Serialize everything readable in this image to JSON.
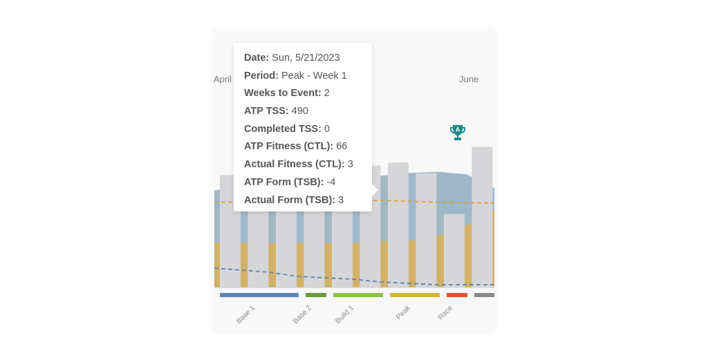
{
  "months": [
    {
      "label": "April"
    },
    {
      "label": "June"
    }
  ],
  "tooltip": {
    "rows": [
      {
        "label": "Date:",
        "value": "Sun, 5/21/2023"
      },
      {
        "label": "Period:",
        "value": "Peak - Week 1"
      },
      {
        "label": "Weeks to Event:",
        "value": "2"
      },
      {
        "label": "ATP TSS:",
        "value": "490"
      },
      {
        "label": "Completed TSS:",
        "value": "0"
      },
      {
        "label": "ATP Fitness (CTL):",
        "value": "66"
      },
      {
        "label": "Actual Fitness (CTL):",
        "value": "3"
      },
      {
        "label": "ATP Form (TSB):",
        "value": "-4"
      },
      {
        "label": "Actual Form (TSB):",
        "value": "3"
      }
    ]
  },
  "event_marker": {
    "icon": "trophy-icon",
    "priority": "A",
    "color": "#1a8a8a"
  },
  "colors": {
    "fitness_area": "#9fb8c8",
    "form_area": "#d1b168",
    "bars": "#d6d6d8",
    "atp_form_line": "#d4a640",
    "actual_line": "#6a86a8"
  },
  "chart_data": {
    "type": "bar",
    "weeks": 13,
    "atp_tss_relative": [
      0.72,
      0.72,
      0.72,
      0.72,
      0.75,
      0.78,
      0.8,
      0.73,
      0.47,
      0.9,
      0,
      0,
      0
    ],
    "fitness_area_relative": [
      0.78,
      0.8,
      0.82,
      0.84,
      0.86,
      0.88,
      0.9,
      0.92,
      0.93,
      0.91,
      0.8,
      0.8,
      0.8
    ],
    "form_area_relative": [
      0.43,
      0.43,
      0.43,
      0.43,
      0.43,
      0.43,
      0.45,
      0.45,
      0.5,
      0.6,
      0.75,
      0.75,
      0.75
    ],
    "periods": [
      {
        "label": "Base 1",
        "color": "#5d86b3"
      },
      {
        "label": "Base 2",
        "color": "#6a9a3a"
      },
      {
        "label": "Build 1",
        "color": "#8bc34a"
      },
      {
        "label": "Peak",
        "color": "#d4b43a"
      },
      {
        "label": "Race",
        "color": "#d9542a"
      },
      {
        "label": "",
        "color": "#8a8a8a"
      }
    ]
  }
}
